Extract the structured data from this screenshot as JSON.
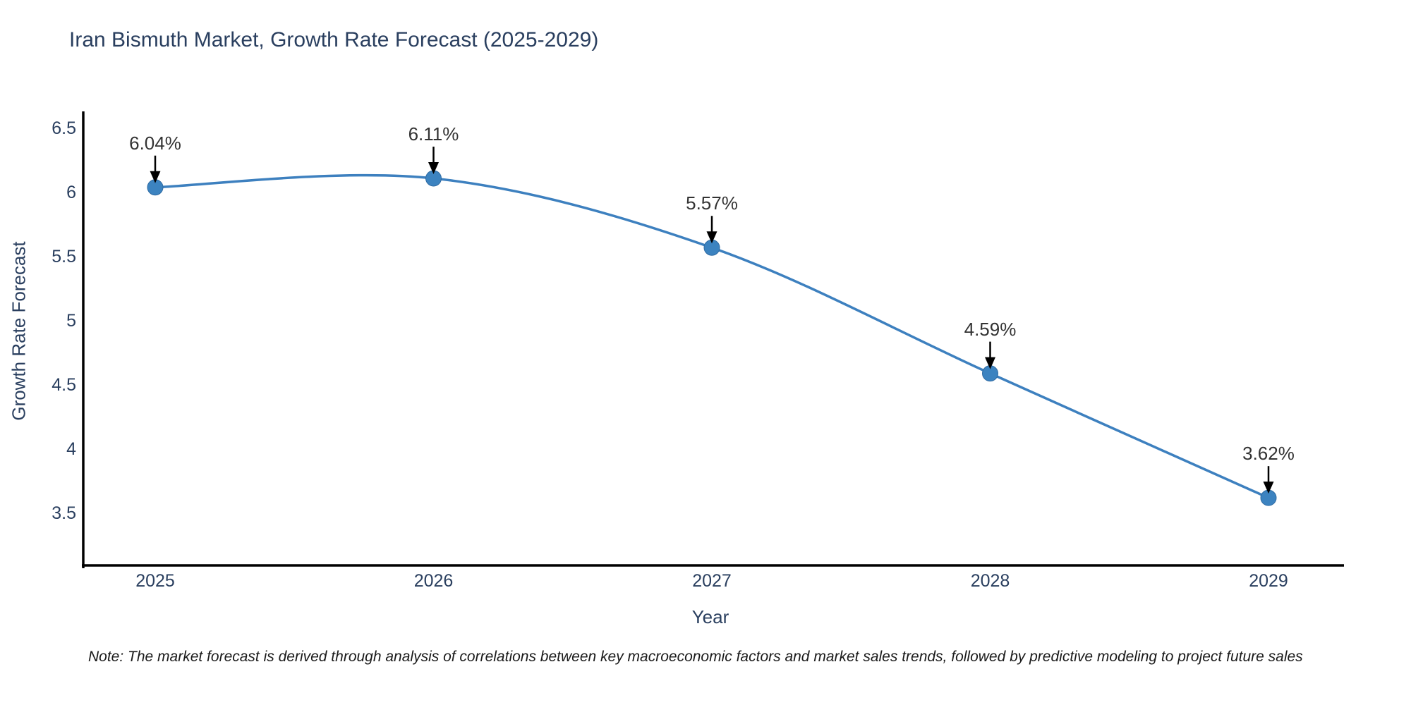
{
  "title": "Iran Bismuth Market, Growth Rate Forecast (2025-2029)",
  "note": "Note: The market forecast is derived through analysis of correlations between key macroeconomic factors and market sales trends, followed by predictive modeling to project future sales",
  "colors": {
    "line": "#3d80bf",
    "marker": "#3c83c0",
    "marker_edge": "#2f6ba3",
    "arrow": "#000000",
    "spine": "#000000",
    "title_text": "#2a3f5f",
    "axis_text": "#2a3f5f",
    "annotation_text": "#333333",
    "background": "#ffffff"
  },
  "chart_data": {
    "type": "line",
    "title": "Iran Bismuth Market, Growth Rate Forecast (2025-2029)",
    "xlabel": "Year",
    "ylabel": "Growth Rate Forecast",
    "categories": [
      "2025",
      "2026",
      "2027",
      "2028",
      "2029"
    ],
    "values": [
      6.04,
      6.11,
      5.57,
      4.59,
      3.62
    ],
    "labels": [
      "6.04%",
      "6.11%",
      "5.57%",
      "4.59%",
      "3.62%"
    ],
    "y_ticks": [
      6.5,
      6,
      5.5,
      5,
      4.5,
      4,
      3.5
    ],
    "ylim": [
      3.1,
      6.64
    ],
    "grid": false,
    "legend": "none",
    "line_shape": "spline",
    "annotation_style": "value label with downward black arrow to marker"
  }
}
